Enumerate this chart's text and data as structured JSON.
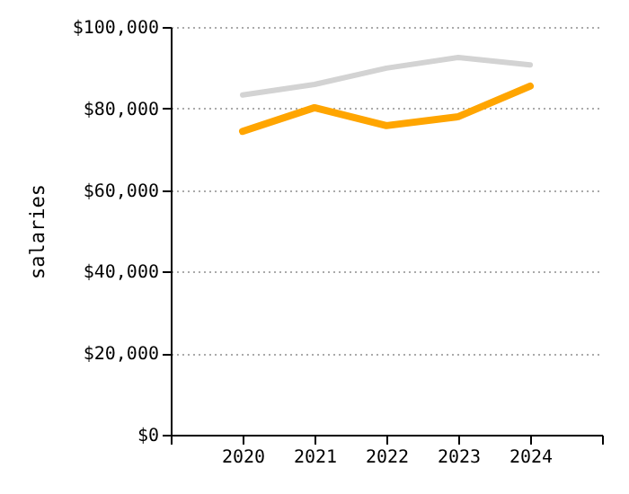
{
  "chart_data": {
    "type": "line",
    "ylabel": "salaries",
    "x": [
      2020,
      2021,
      2022,
      2023,
      2024
    ],
    "xlim": [
      2019,
      2025
    ],
    "xticks": [
      {
        "value": 2019,
        "label": null
      },
      2020,
      2021,
      2022,
      2023,
      2024,
      {
        "value": 2025,
        "label": null
      }
    ],
    "ylim": [
      0,
      100000
    ],
    "yticks": [
      {
        "value": 0,
        "label": "$0"
      },
      {
        "value": 20000,
        "label": "$20,000"
      },
      {
        "value": 40000,
        "label": "$40,000"
      },
      {
        "value": 60000,
        "label": "$60,000"
      },
      {
        "value": 80000,
        "label": "$80,000"
      },
      {
        "value": 100000,
        "label": "$100,000"
      }
    ],
    "grid": "y",
    "line_style": "solid",
    "series": [
      {
        "color": "#d3d3d3",
        "values": [
          83300,
          85900,
          89900,
          92500,
          90700
        ]
      },
      {
        "color": "#ffa500",
        "values": [
          74400,
          80200,
          75800,
          78000,
          85500
        ]
      }
    ]
  }
}
